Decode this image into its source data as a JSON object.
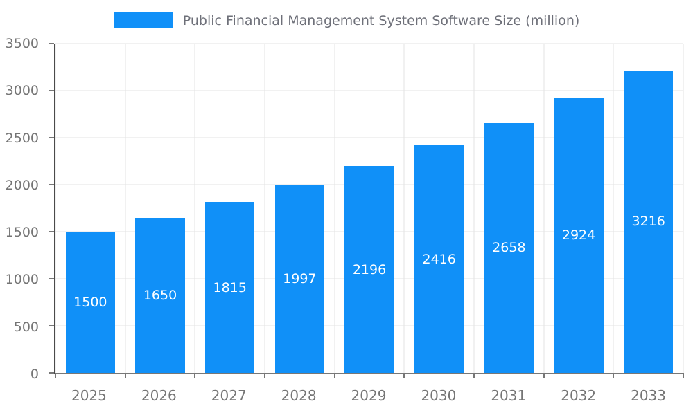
{
  "legend": {
    "label": "Public Financial Management System Software Size (million)"
  },
  "chart_data": {
    "type": "bar",
    "title": "Public Financial Management System Software Size (million)",
    "categories": [
      "2025",
      "2026",
      "2027",
      "2028",
      "2029",
      "2030",
      "2031",
      "2032",
      "2033"
    ],
    "values": [
      1500,
      1650,
      1815,
      1997,
      2196,
      2416,
      2658,
      2924,
      3216
    ],
    "xlabel": "",
    "ylabel": "",
    "ylim": [
      0,
      3500
    ],
    "yticks": [
      0,
      500,
      1000,
      1500,
      2000,
      2500,
      3000,
      3500
    ],
    "grid": true,
    "legend_position": "top",
    "bar_color": "#1090F8",
    "value_label_color": "#FFFFFF",
    "axis_label_color": "#757575"
  }
}
